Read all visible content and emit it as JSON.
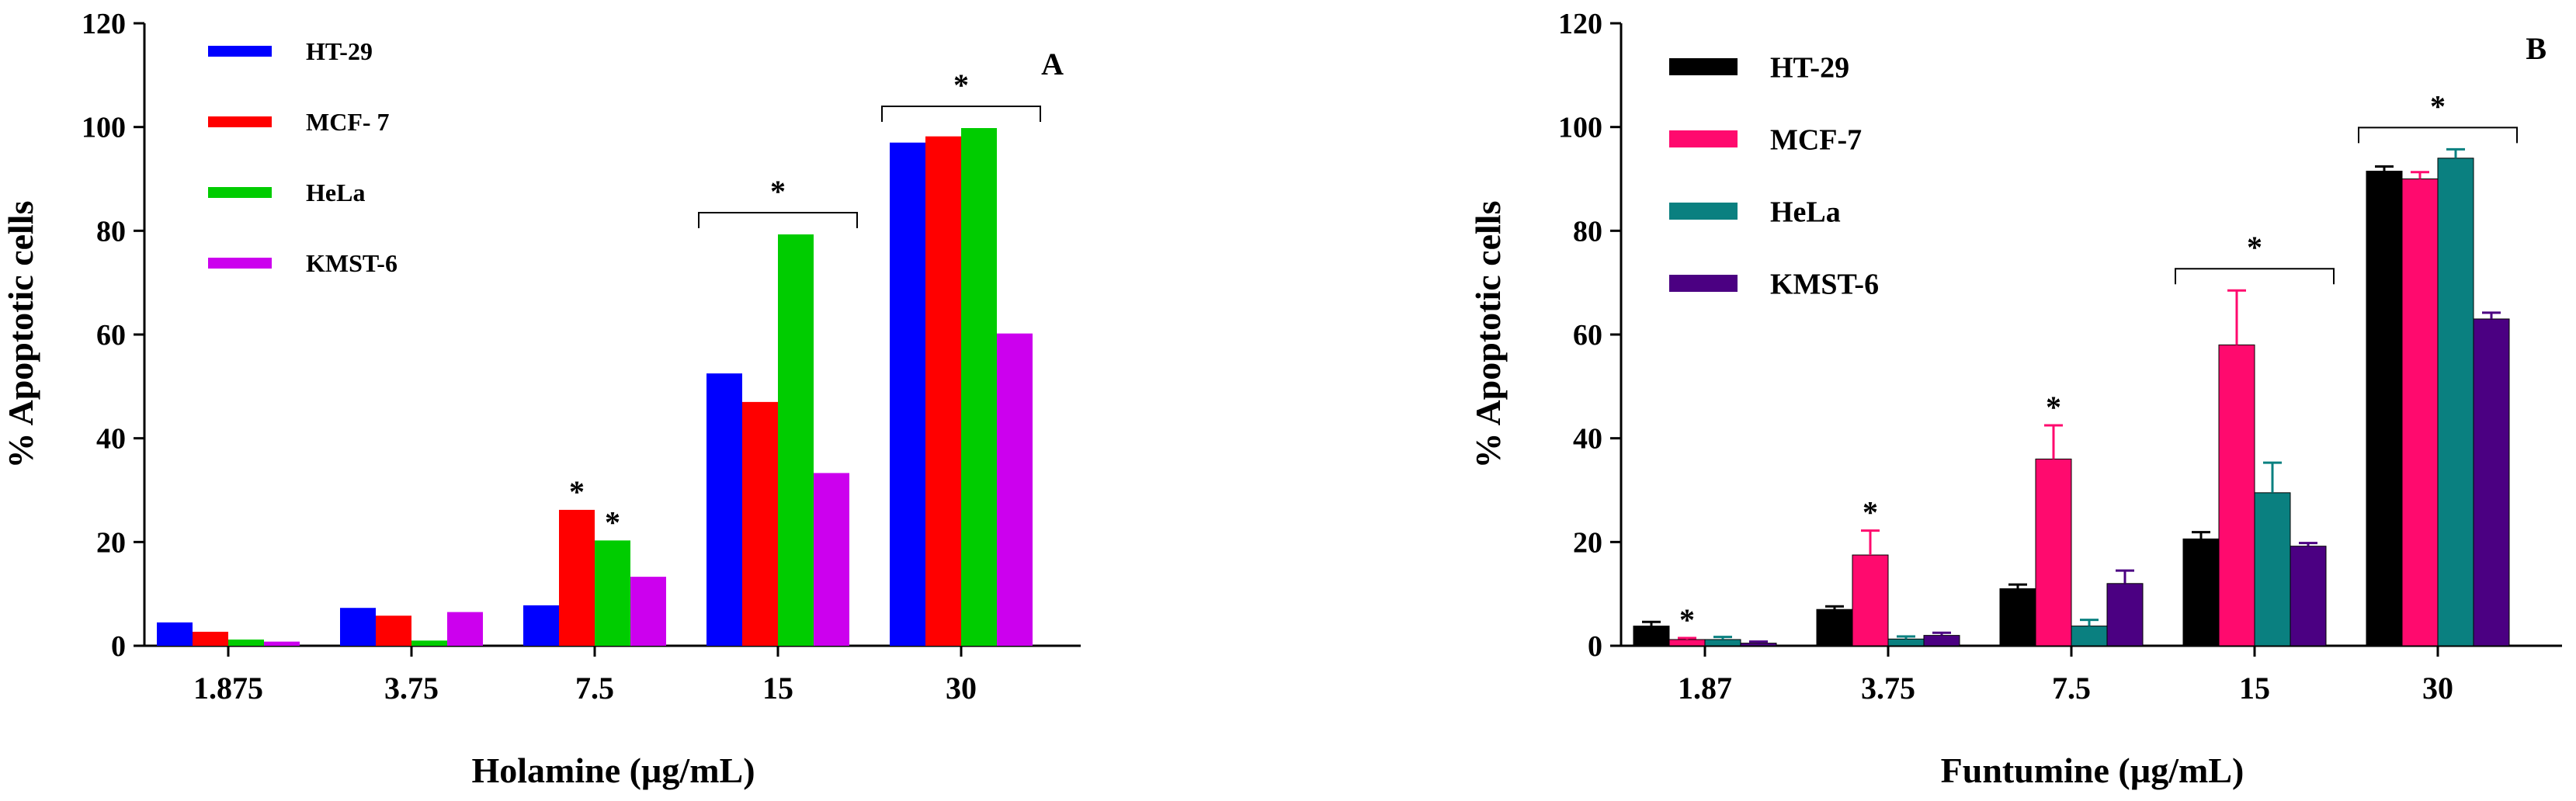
{
  "chart_data": [
    {
      "type": "bar",
      "panel_label": "A",
      "categories": [
        "1.875",
        "3.75",
        "7.5",
        "15",
        "30"
      ],
      "series": [
        {
          "name": "HT-29",
          "color": "#0000ff",
          "values": [
            4.5,
            7.3,
            7.8,
            52.5,
            97
          ]
        },
        {
          "name": "MCF- 7",
          "color": "#ff0000",
          "values": [
            2.7,
            5.8,
            26.2,
            47,
            98.2
          ]
        },
        {
          "name": "HeLa",
          "color": "#00cc00",
          "values": [
            1.2,
            1.0,
            20.3,
            79.3,
            99.8
          ]
        },
        {
          "name": "KMST-6",
          "color": "#cc00ee",
          "values": [
            0.8,
            6.5,
            13.3,
            33.3,
            60.2
          ]
        }
      ],
      "errors": null,
      "ylabel": "% Apoptotic cells",
      "xlabel": "Holamine (µg/mL)",
      "ylim": [
        0,
        120
      ],
      "yticks": [
        "0",
        "20",
        "40",
        "60",
        "80",
        "100",
        "120"
      ],
      "significance_bars": [
        {
          "category": "15",
          "label": "*"
        },
        {
          "category": "30",
          "label": "*"
        }
      ],
      "significance_marks": [
        {
          "category": "7.5",
          "series": 1,
          "label": "*"
        },
        {
          "category": "7.5",
          "series": 2,
          "label": "*"
        }
      ]
    },
    {
      "type": "bar",
      "panel_label": "B",
      "categories": [
        "1.87",
        "3.75",
        "7.5",
        "15",
        "30"
      ],
      "series": [
        {
          "name": "HT-29",
          "color": "#000000",
          "values": [
            3.8,
            7.0,
            11.0,
            20.6,
            91.5
          ]
        },
        {
          "name": "MCF-7",
          "color": "#ff0a6e",
          "values": [
            1.2,
            17.5,
            36.0,
            58.0,
            90.0
          ]
        },
        {
          "name": "HeLa",
          "color": "#0a8080",
          "values": [
            1.2,
            1.3,
            3.8,
            29.5,
            94.0
          ]
        },
        {
          "name": "KMST-6",
          "color": "#4b0082",
          "values": [
            0.5,
            2.0,
            12.0,
            19.2,
            63.0
          ]
        }
      ],
      "errors": [
        [
          0.8,
          0.6,
          0.8,
          1.3,
          0.9
        ],
        [
          0.3,
          4.7,
          6.5,
          10.5,
          1.3
        ],
        [
          0.5,
          0.5,
          1.2,
          5.8,
          1.7
        ],
        [
          0.3,
          0.5,
          2.5,
          0.6,
          1.2
        ]
      ],
      "ylabel": "% Apoptotic cells",
      "xlabel": "Funtumine (µg/mL)",
      "ylim": [
        0,
        120
      ],
      "yticks": [
        "0",
        "20",
        "40",
        "60",
        "80",
        "100",
        "120"
      ],
      "significance_bars": [
        {
          "category": "15",
          "label": "*"
        },
        {
          "category": "30",
          "label": "*"
        }
      ],
      "significance_marks": [
        {
          "category": "1.87",
          "series": 1,
          "label": "*"
        },
        {
          "category": "3.75",
          "series": 1,
          "label": "*"
        },
        {
          "category": "7.5",
          "series": 1,
          "label": "*"
        }
      ]
    }
  ]
}
